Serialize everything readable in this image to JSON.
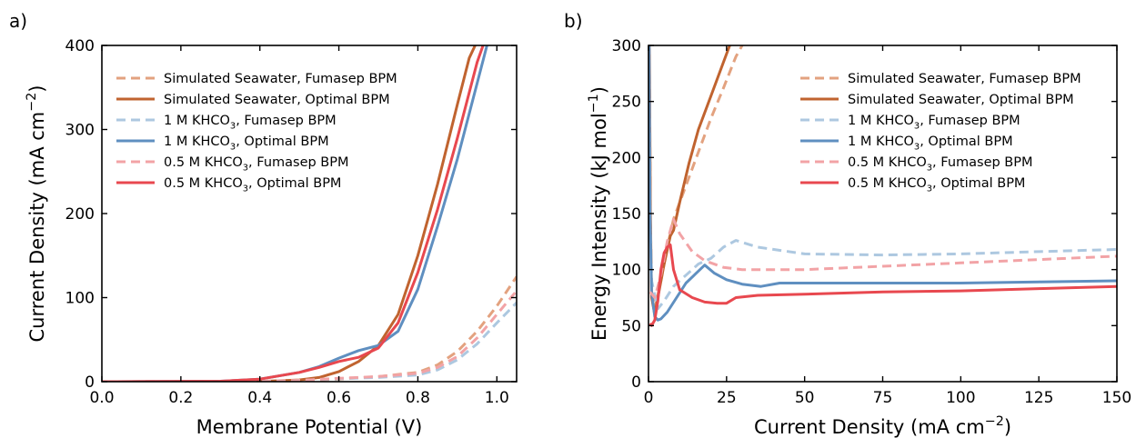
{
  "colors": {
    "seawater_fumasep": "#e3a27f",
    "seawater_optimal": "#c0632f",
    "khco3_1m_fumasep": "#adc8e0",
    "khco3_1m_optimal": "#5f8fc0",
    "khco3_05m_fumasep": "#f2a3a6",
    "khco3_05m_optimal": "#e8484f"
  },
  "chart_data": [
    {
      "panel_label": "a)",
      "type": "line",
      "xlabel": "Membrane Potential (V)",
      "ylabel": "Current Density (mA cm⁻²)",
      "xlim": [
        0.0,
        1.05
      ],
      "ylim": [
        0,
        400
      ],
      "xticks": [
        {
          "v": 0.0,
          "label": "0.0"
        },
        {
          "v": 0.2,
          "label": "0.2"
        },
        {
          "v": 0.4,
          "label": "0.4"
        },
        {
          "v": 0.6,
          "label": "0.6"
        },
        {
          "v": 0.8,
          "label": "0.8"
        },
        {
          "v": 1.0,
          "label": "1.0"
        }
      ],
      "yticks": [
        {
          "v": 0,
          "label": "0"
        },
        {
          "v": 100,
          "label": "100"
        },
        {
          "v": 200,
          "label": "200"
        },
        {
          "v": 300,
          "label": "300"
        },
        {
          "v": 400,
          "label": "400"
        }
      ],
      "grid": false,
      "legend_position": "top-left",
      "series": [
        {
          "name": "Simulated Seawater, Fumasep BPM",
          "color_key": "seawater_fumasep",
          "dash": true,
          "x": [
            0.0,
            0.3,
            0.5,
            0.6,
            0.7,
            0.8,
            0.85,
            0.9,
            0.95,
            1.0,
            1.05
          ],
          "y": [
            0,
            0.2,
            1,
            3,
            6,
            11,
            20,
            36,
            60,
            90,
            125
          ]
        },
        {
          "name": "Simulated Seawater, Optimal BPM",
          "color_key": "seawater_optimal",
          "dash": false,
          "x": [
            0.0,
            0.4,
            0.5,
            0.55,
            0.6,
            0.65,
            0.7,
            0.75,
            0.8,
            0.85,
            0.9,
            0.93,
            0.945
          ],
          "y": [
            0,
            0.3,
            2,
            5,
            12,
            24,
            43,
            80,
            150,
            235,
            330,
            385,
            400
          ]
        },
        {
          "name": "1 M KHCO₃, Fumasep BPM",
          "color_key": "khco3_1m_fumasep",
          "dash": true,
          "x": [
            0.0,
            0.4,
            0.5,
            0.6,
            0.7,
            0.8,
            0.85,
            0.9,
            0.95,
            1.0,
            1.05
          ],
          "y": [
            0,
            0.3,
            1.5,
            3.5,
            5,
            8,
            14,
            26,
            45,
            70,
            94
          ]
        },
        {
          "name": "1 M KHCO₃, Optimal BPM",
          "color_key": "khco3_1m_optimal",
          "dash": false,
          "x": [
            0.0,
            0.3,
            0.4,
            0.5,
            0.55,
            0.6,
            0.65,
            0.7,
            0.75,
            0.8,
            0.85,
            0.9,
            0.95,
            0.975
          ],
          "y": [
            0,
            0.5,
            3,
            11,
            18,
            28,
            37,
            43,
            60,
            110,
            185,
            265,
            355,
            400
          ]
        },
        {
          "name": "0.5 M KHCO₃, Fumasep BPM",
          "color_key": "khco3_05m_fumasep",
          "dash": true,
          "x": [
            0.0,
            0.4,
            0.5,
            0.6,
            0.7,
            0.8,
            0.85,
            0.9,
            0.95,
            1.0,
            1.05
          ],
          "y": [
            0,
            0.3,
            1.5,
            4,
            6,
            10,
            17,
            30,
            52,
            80,
            108
          ]
        },
        {
          "name": "0.5 M KHCO₃, Optimal BPM",
          "color_key": "khco3_05m_optimal",
          "dash": false,
          "x": [
            0.0,
            0.3,
            0.4,
            0.5,
            0.55,
            0.6,
            0.65,
            0.7,
            0.75,
            0.8,
            0.85,
            0.9,
            0.95,
            0.965
          ],
          "y": [
            0,
            0.5,
            3,
            11,
            17,
            24,
            29,
            40,
            70,
            130,
            205,
            290,
            380,
            400
          ]
        }
      ]
    },
    {
      "panel_label": "b)",
      "type": "line",
      "xlabel": "Current Density (mA cm⁻²)",
      "ylabel": "Energy Intensity (kJ mol⁻¹)",
      "xlim": [
        0,
        150
      ],
      "ylim": [
        0,
        300
      ],
      "xticks": [
        {
          "v": 0,
          "label": "0"
        },
        {
          "v": 25,
          "label": "25"
        },
        {
          "v": 50,
          "label": "50"
        },
        {
          "v": 75,
          "label": "75"
        },
        {
          "v": 100,
          "label": "100"
        },
        {
          "v": 125,
          "label": "125"
        },
        {
          "v": 150,
          "label": "150"
        }
      ],
      "yticks": [
        {
          "v": 0,
          "label": "0"
        },
        {
          "v": 50,
          "label": "50"
        },
        {
          "v": 100,
          "label": "100"
        },
        {
          "v": 150,
          "label": "150"
        },
        {
          "v": 200,
          "label": "200"
        },
        {
          "v": 250,
          "label": "250"
        },
        {
          "v": 300,
          "label": "300"
        }
      ],
      "grid": false,
      "legend_position": "top-right",
      "series": [
        {
          "name": "Simulated Seawater, Fumasep BPM",
          "color_key": "seawater_fumasep",
          "dash": true,
          "x": [
            0.3,
            0.6,
            1,
            2,
            4,
            6,
            8,
            12,
            16,
            20,
            24,
            28,
            30
          ],
          "y": [
            300,
            150,
            85,
            65,
            90,
            120,
            145,
            175,
            205,
            235,
            262,
            290,
            300
          ]
        },
        {
          "name": "Simulated Seawater, Optimal BPM",
          "color_key": "seawater_optimal",
          "dash": false,
          "x": [
            0.3,
            0.6,
            1,
            2,
            3,
            5,
            7,
            8,
            10,
            13,
            16,
            20,
            24,
            26
          ],
          "y": [
            300,
            150,
            75,
            60,
            75,
            105,
            130,
            135,
            160,
            195,
            225,
            255,
            285,
            300
          ]
        },
        {
          "name": "1 M KHCO₃, Fumasep BPM",
          "color_key": "khco3_1m_fumasep",
          "dash": true,
          "x": [
            0.2,
            0.5,
            1,
            3,
            5,
            8,
            12,
            16,
            20,
            24,
            28,
            35,
            50,
            75,
            100,
            125,
            150
          ],
          "y": [
            300,
            150,
            90,
            65,
            72,
            85,
            95,
            105,
            110,
            120,
            126,
            120,
            114,
            113,
            114,
            116,
            118
          ]
        },
        {
          "name": "1 M KHCO₃, Optimal BPM",
          "color_key": "khco3_1m_optimal",
          "dash": false,
          "x": [
            0.2,
            0.5,
            1,
            2,
            3,
            4,
            6,
            9,
            12,
            15,
            18,
            21,
            25,
            30,
            36,
            42,
            50,
            75,
            100,
            125,
            150
          ],
          "y": [
            300,
            150,
            80,
            58,
            55,
            56,
            62,
            75,
            88,
            96,
            104,
            97,
            91,
            87,
            85,
            88,
            88,
            88,
            88,
            89,
            90
          ]
        },
        {
          "name": "0.5 M KHCO₃, Fumasep BPM",
          "color_key": "khco3_05m_fumasep",
          "dash": true,
          "x": [
            0.5,
            2,
            4,
            6,
            8,
            10,
            14,
            18,
            24,
            30,
            50,
            75,
            100,
            125,
            150
          ],
          "y": [
            80,
            75,
            95,
            125,
            145,
            132,
            116,
            108,
            102,
            100,
            100,
            103,
            106,
            109,
            112
          ]
        },
        {
          "name": "0.5 M KHCO₃, Optimal BPM",
          "color_key": "khco3_05m_optimal",
          "dash": false,
          "x": [
            0.5,
            1,
            2,
            3,
            4,
            5,
            6,
            7,
            8,
            10,
            14,
            18,
            22,
            25,
            28,
            35,
            50,
            75,
            100,
            125,
            150
          ],
          "y": [
            52,
            50,
            55,
            72,
            100,
            115,
            120,
            122,
            100,
            82,
            75,
            71,
            70,
            70,
            75,
            77,
            78,
            80,
            81,
            83,
            85
          ]
        }
      ]
    }
  ]
}
